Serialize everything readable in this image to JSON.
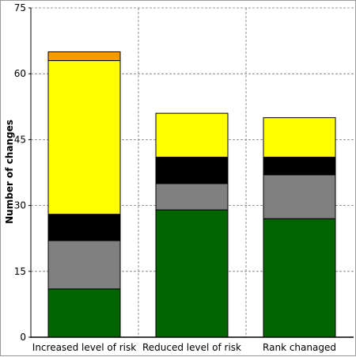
{
  "chart_data": {
    "type": "bar",
    "stacked": true,
    "title": "",
    "xlabel": "",
    "ylabel": "Number of changes",
    "ylim": [
      0,
      75
    ],
    "yticks": [
      0,
      15,
      30,
      45,
      60,
      75
    ],
    "grid": true,
    "categories": [
      "Increased level of risk",
      "Reduced level of risk",
      "Rank chanaged"
    ],
    "series": [
      {
        "color": "#006400",
        "values": [
          11,
          29,
          27
        ]
      },
      {
        "color": "#808080",
        "values": [
          11,
          6,
          10
        ]
      },
      {
        "color": "#000000",
        "values": [
          6,
          6,
          4
        ]
      },
      {
        "color": "#ffff00",
        "values": [
          35,
          10,
          9
        ]
      },
      {
        "color": "#ff9900",
        "values": [
          2,
          0,
          0
        ]
      }
    ]
  }
}
